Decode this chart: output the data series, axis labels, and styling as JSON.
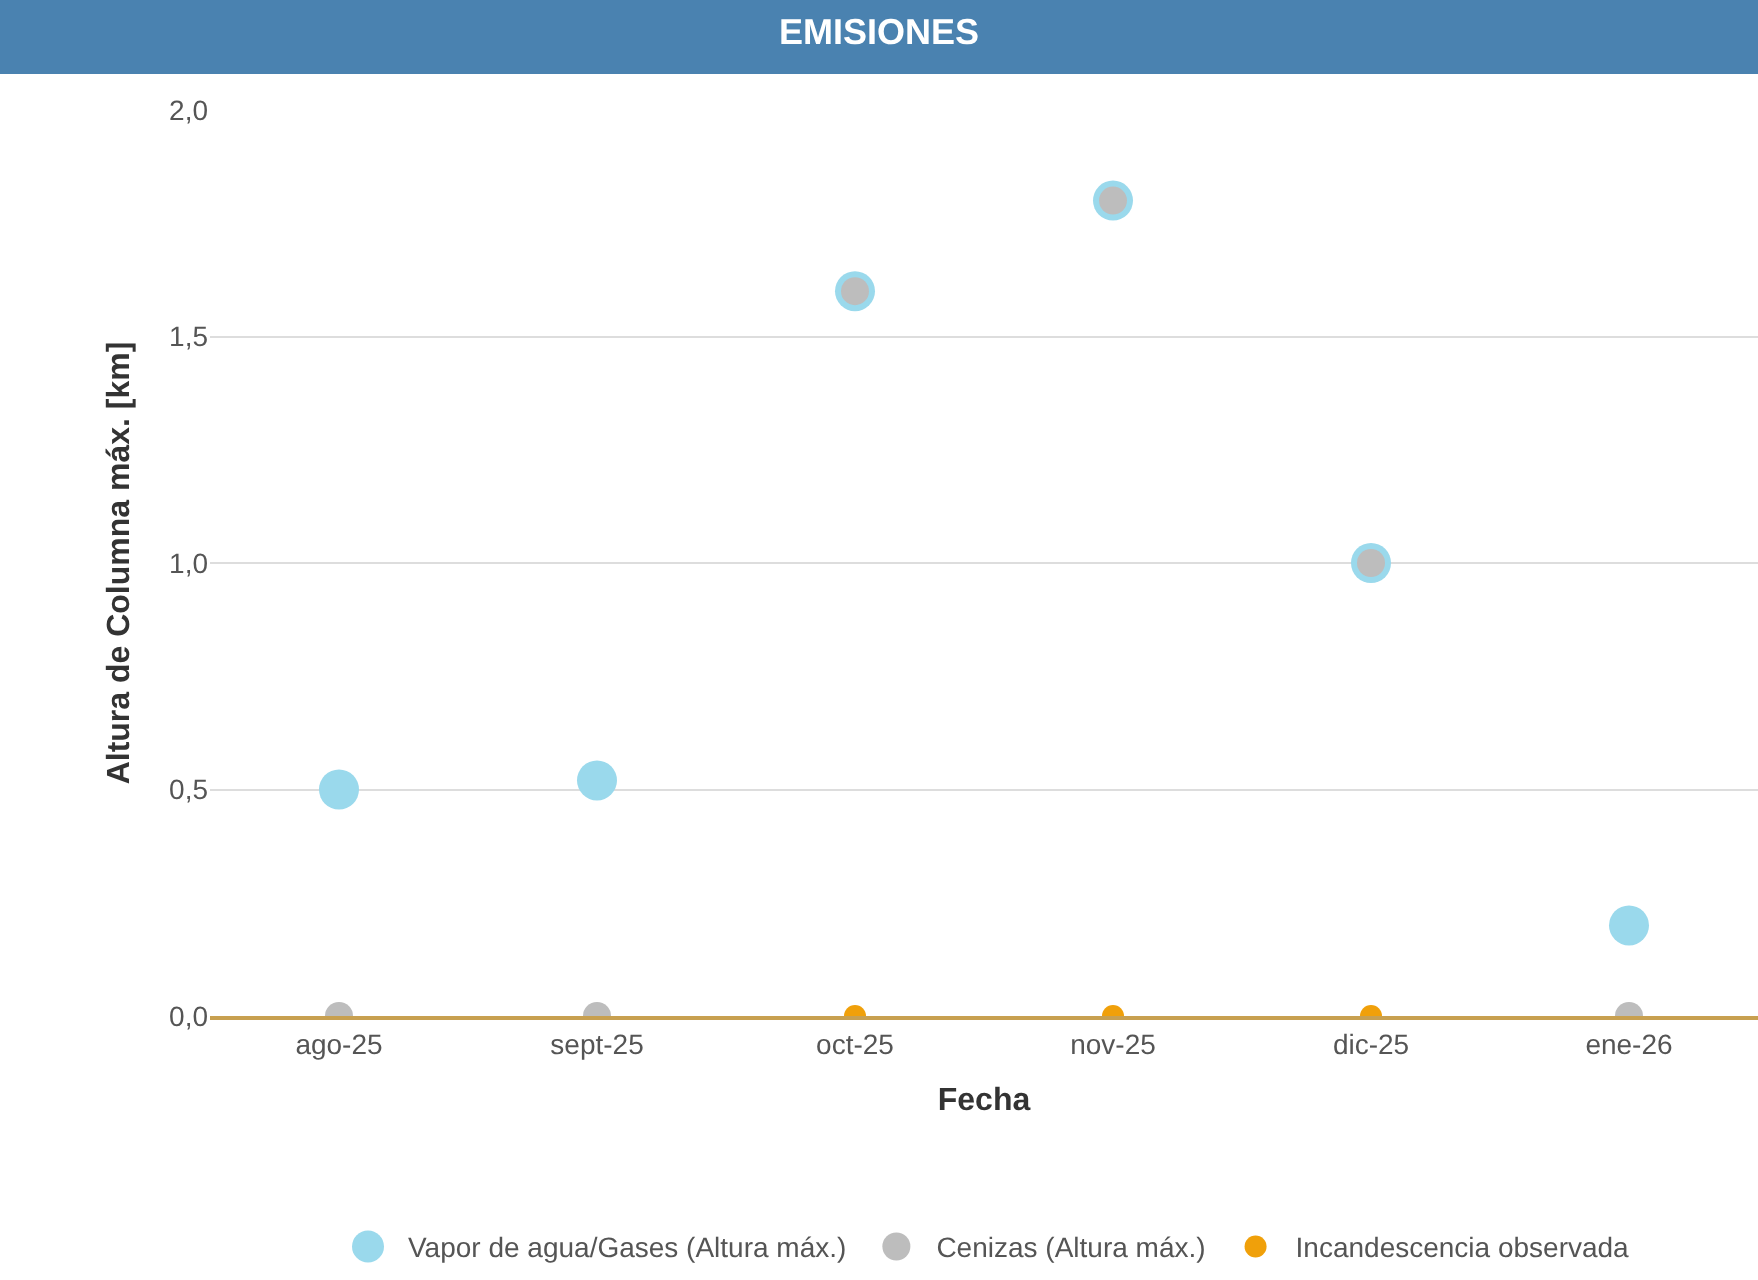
{
  "chart_data": {
    "type": "scatter",
    "title": "EMISIONES",
    "xlabel": "Fecha",
    "ylabel": "Altura de Columna máx. [km]",
    "categories": [
      "ago-25",
      "sept-25",
      "oct-25",
      "nov-25",
      "dic-25",
      "ene-26"
    ],
    "series": [
      {
        "name": "Vapor de agua/Gases (Altura máx.)",
        "color": "#9ad9ec",
        "values": [
          0.5,
          0.52,
          1.6,
          1.8,
          1.0,
          0.2
        ]
      },
      {
        "name": "Cenizas (Altura máx.)",
        "color": "#bdbdbd",
        "values": [
          0,
          0,
          1.6,
          1.8,
          1.0,
          0
        ]
      },
      {
        "name": "Incandescencia observada",
        "color": "#f0a00a",
        "values": [
          null,
          null,
          0,
          0,
          0,
          null
        ]
      }
    ],
    "ylim": [
      0,
      2
    ],
    "yticks": [
      {
        "value": 0,
        "label": "0,0"
      },
      {
        "value": 0.5,
        "label": "0,5"
      },
      {
        "value": 1,
        "label": "1,0"
      },
      {
        "value": 1.5,
        "label": "1,5"
      },
      {
        "value": 2,
        "label": "2,0"
      }
    ],
    "grid": "y",
    "legend": "bottom",
    "marker": "circle"
  }
}
